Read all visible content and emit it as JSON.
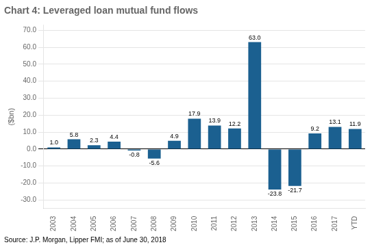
{
  "chart_data": {
    "type": "bar",
    "title": "Chart 4: Leveraged loan mutual fund flows",
    "ylabel": "($bn)",
    "annotations": [
      "Source: J.P. Morgan, Lipper FMI; as of June 30, 2018"
    ],
    "categories": [
      "2003",
      "2004",
      "2005",
      "2006",
      "2007",
      "2008",
      "2009",
      "2010",
      "2011",
      "2012",
      "2013",
      "2014",
      "2015",
      "2016",
      "2017",
      "YTD"
    ],
    "values": [
      1.0,
      5.8,
      2.3,
      4.4,
      -0.8,
      -5.6,
      4.9,
      17.9,
      13.9,
      12.2,
      63.0,
      -23.8,
      -21.7,
      9.2,
      13.1,
      11.9
    ],
    "value_labels": [
      "1.0",
      "5.8",
      "2.3",
      "4.4",
      "-0.8",
      "-5.6",
      "4.9",
      "17.9",
      "13.9",
      "12.2",
      "63.0",
      "-23.8",
      "-21.7",
      "9.2",
      "13.1",
      "11.9"
    ],
    "color": "#1B6090",
    "ylim": [
      -35,
      73
    ],
    "yticks": [
      {
        "value": -30,
        "label": "-30.0"
      },
      {
        "value": -20,
        "label": "-20.0"
      },
      {
        "value": -10,
        "label": "-10.0"
      },
      {
        "value": 0,
        "label": "0.0"
      },
      {
        "value": 10,
        "label": "10.0"
      },
      {
        "value": 20,
        "label": "20.0"
      },
      {
        "value": 30,
        "label": "30.0"
      },
      {
        "value": 40,
        "label": "40.0"
      },
      {
        "value": 50,
        "label": "50.0"
      },
      {
        "value": 60,
        "label": "60.0"
      },
      {
        "value": 70,
        "label": "70.0"
      }
    ],
    "grid": true,
    "data_labels": true
  }
}
